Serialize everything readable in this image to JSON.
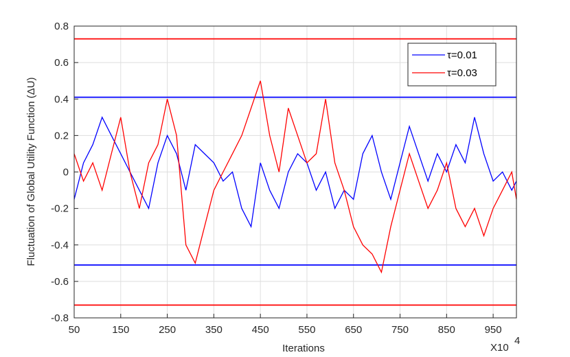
{
  "chart_data": {
    "type": "line",
    "xlabel": "Iterations",
    "ylabel": "Fluctuation of Global Utility Function (ΔU)",
    "x_multiplier_label": "X10",
    "x_multiplier_exponent": "4",
    "xlim": [
      50,
      1000
    ],
    "ylim": [
      -0.8,
      0.8
    ],
    "xticks": [
      "50",
      "150",
      "250",
      "350",
      "450",
      "550",
      "650",
      "750",
      "850",
      "950"
    ],
    "xtick_values": [
      50,
      150,
      250,
      350,
      450,
      550,
      650,
      750,
      850,
      950
    ],
    "yticks": [
      "-0.8",
      "-0.6",
      "-0.4",
      "-0.2",
      "0",
      "0.2",
      "0.4",
      "0.6",
      "0.8"
    ],
    "ytick_values": [
      -0.8,
      -0.6,
      -0.4,
      -0.2,
      0,
      0.2,
      0.4,
      0.6,
      0.8
    ],
    "grid": true,
    "legend_position": "top-right",
    "series": [
      {
        "name": "τ=0.01",
        "color": "#0000ff",
        "x": [
          50,
          70,
          90,
          110,
          130,
          150,
          170,
          190,
          210,
          230,
          250,
          270,
          290,
          310,
          330,
          350,
          370,
          390,
          410,
          430,
          450,
          470,
          490,
          510,
          530,
          550,
          570,
          590,
          610,
          630,
          650,
          670,
          690,
          710,
          730,
          750,
          770,
          790,
          810,
          830,
          850,
          870,
          890,
          910,
          930,
          950,
          970,
          990,
          1000
        ],
        "values": [
          -0.15,
          0.05,
          0.15,
          0.3,
          0.2,
          0.1,
          0.0,
          -0.1,
          -0.2,
          0.05,
          0.2,
          0.1,
          -0.1,
          0.15,
          0.1,
          0.05,
          -0.05,
          0.0,
          -0.2,
          -0.3,
          0.05,
          -0.1,
          -0.2,
          0.0,
          0.1,
          0.05,
          -0.1,
          0.0,
          -0.2,
          -0.1,
          -0.15,
          0.1,
          0.2,
          0.0,
          -0.15,
          0.05,
          0.25,
          0.1,
          -0.05,
          0.1,
          0.0,
          0.15,
          0.05,
          0.3,
          0.1,
          -0.05,
          0.0,
          -0.1,
          -0.05
        ],
        "bounds": [
          0.41,
          -0.51
        ]
      },
      {
        "name": "τ=0.03",
        "color": "#ff0000",
        "x": [
          50,
          70,
          90,
          110,
          130,
          150,
          170,
          190,
          210,
          230,
          250,
          270,
          290,
          310,
          330,
          350,
          370,
          390,
          410,
          430,
          450,
          470,
          490,
          510,
          530,
          550,
          570,
          590,
          610,
          630,
          650,
          670,
          690,
          710,
          730,
          750,
          770,
          790,
          810,
          830,
          850,
          870,
          890,
          910,
          930,
          950,
          970,
          990,
          1000
        ],
        "values": [
          0.1,
          -0.05,
          0.05,
          -0.1,
          0.1,
          0.3,
          0.0,
          -0.2,
          0.05,
          0.15,
          0.4,
          0.2,
          -0.4,
          -0.5,
          -0.3,
          -0.1,
          0.0,
          0.1,
          0.2,
          0.35,
          0.5,
          0.2,
          0.0,
          0.35,
          0.2,
          0.05,
          0.1,
          0.4,
          0.05,
          -0.1,
          -0.3,
          -0.4,
          -0.45,
          -0.55,
          -0.3,
          -0.1,
          0.1,
          -0.05,
          -0.2,
          -0.1,
          0.05,
          -0.2,
          -0.3,
          -0.2,
          -0.35,
          -0.2,
          -0.1,
          0.0,
          -0.15
        ],
        "bounds": [
          0.73,
          -0.73
        ]
      }
    ]
  }
}
